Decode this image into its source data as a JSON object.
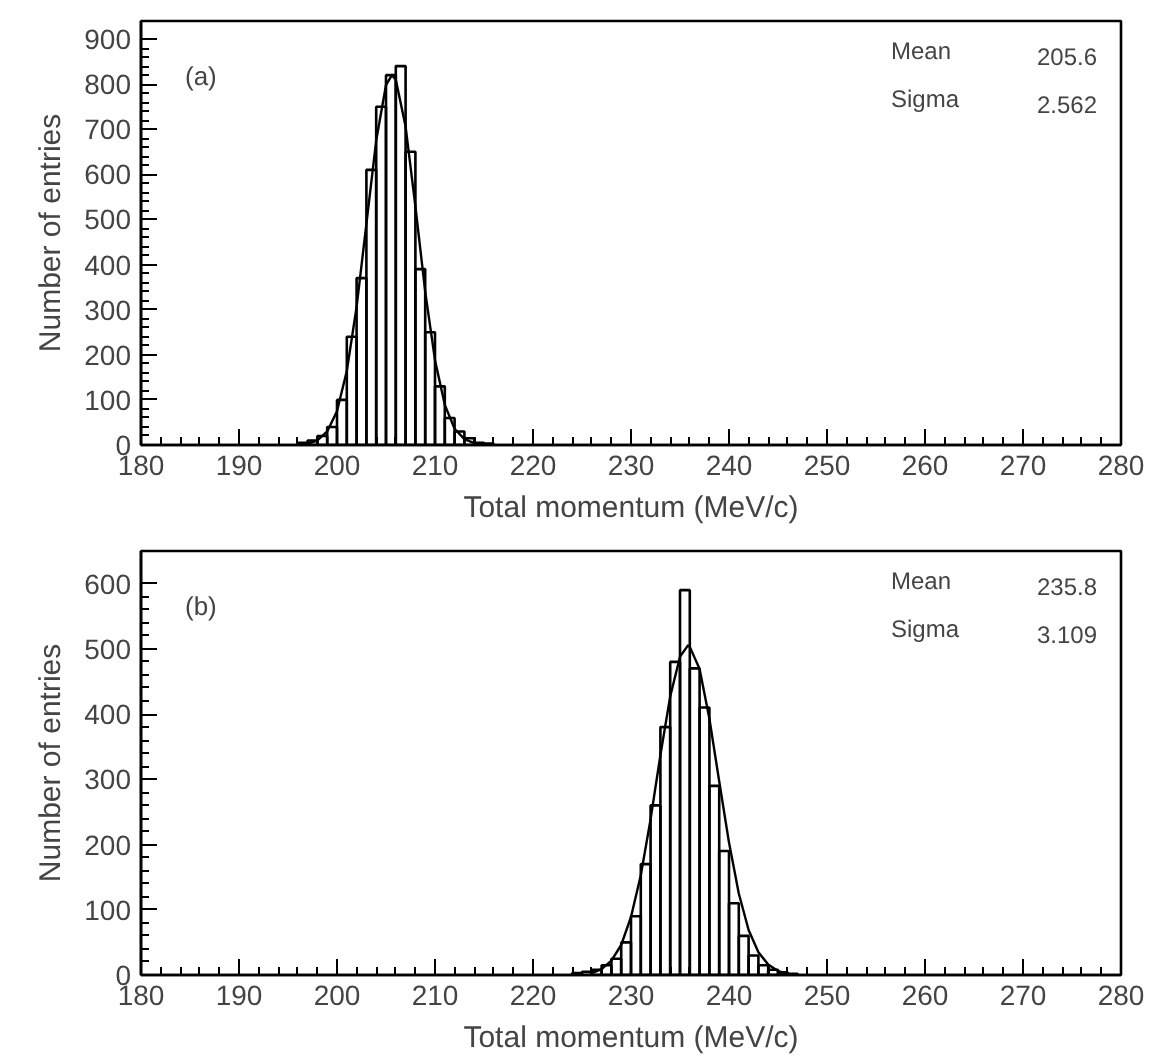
{
  "chart_data": [
    {
      "type": "histogram",
      "xlabel": "Total momentum (MeV/c)",
      "ylabel": "Number of entries",
      "xlim": [
        180,
        280
      ],
      "ylim": [
        0,
        940
      ],
      "xticks": [
        180,
        190,
        200,
        210,
        220,
        230,
        240,
        250,
        260,
        270,
        280
      ],
      "yticks": [
        0,
        100,
        200,
        300,
        400,
        500,
        600,
        700,
        800,
        900
      ],
      "grid": false,
      "annotations": [
        "(a)",
        "Mean",
        "205.6",
        "Sigma",
        "2.562"
      ],
      "series": [
        {
          "color": "#000000",
          "bins": [
            196,
            197,
            198,
            199,
            200,
            201,
            202,
            203,
            204,
            205,
            206,
            207,
            208,
            209,
            210,
            211,
            212,
            213,
            214,
            215,
            216
          ],
          "values": [
            5,
            10,
            20,
            40,
            100,
            240,
            370,
            610,
            750,
            820,
            840,
            650,
            390,
            250,
            130,
            60,
            30,
            15,
            5,
            3
          ]
        },
        {
          "type": "line",
          "color": "#000000",
          "x": [
            197,
            198,
            199,
            200,
            201,
            202,
            203,
            204,
            205,
            205.6,
            206,
            207,
            208,
            209,
            210,
            211,
            212,
            213,
            214
          ],
          "values": [
            3,
            10,
            30,
            75,
            164,
            306,
            490,
            675,
            798,
            820,
            810,
            706,
            529,
            340,
            188,
            89,
            36,
            13,
            4
          ]
        }
      ]
    },
    {
      "type": "histogram",
      "xlabel": "Total momentum (MeV/c)",
      "ylabel": "Number of entries",
      "xlim": [
        180,
        280
      ],
      "ylim": [
        0,
        650
      ],
      "xticks": [
        180,
        190,
        200,
        210,
        220,
        230,
        240,
        250,
        260,
        270,
        280
      ],
      "yticks": [
        0,
        100,
        200,
        300,
        400,
        500,
        600
      ],
      "grid": false,
      "annotations": [
        "(b)",
        "Mean",
        "235.8",
        "Sigma",
        "3.109"
      ],
      "series": [
        {
          "color": "#000000",
          "bins": [
            224,
            225,
            226,
            227,
            228,
            229,
            230,
            231,
            232,
            233,
            234,
            235,
            236,
            237,
            238,
            239,
            240,
            241,
            242,
            243,
            244,
            245,
            246,
            247
          ],
          "values": [
            3,
            5,
            8,
            15,
            25,
            50,
            90,
            170,
            260,
            380,
            480,
            590,
            470,
            410,
            290,
            190,
            110,
            60,
            30,
            15,
            8,
            4,
            2
          ]
        },
        {
          "type": "line",
          "color": "#000000",
          "x": [
            226,
            227,
            228,
            229,
            230,
            231,
            232,
            233,
            234,
            235,
            235.8,
            236,
            237,
            238,
            239,
            240,
            241,
            242,
            243,
            244,
            245,
            246
          ],
          "values": [
            3,
            9,
            22,
            46,
            89,
            153,
            239,
            337,
            427,
            488,
            505,
            503,
            469,
            393,
            297,
            203,
            125,
            69,
            35,
            16,
            6,
            2
          ]
        }
      ]
    }
  ]
}
